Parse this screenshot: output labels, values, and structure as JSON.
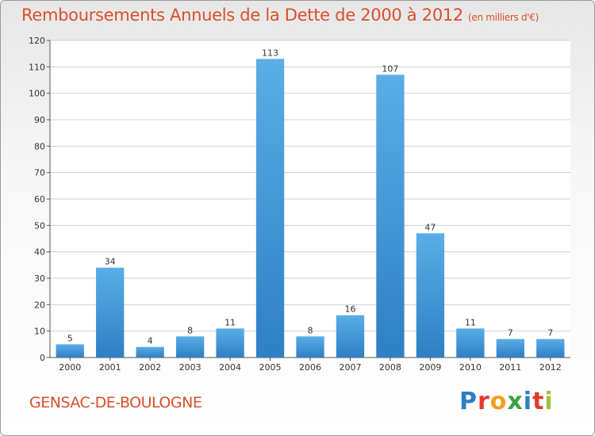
{
  "header": {
    "title": "Remboursements Annuels de la Dette de 2000 à 2012",
    "unit": "(en milliers d'€)"
  },
  "footer": {
    "commune": "GENSAC-DE-BOULOGNE",
    "logo": "Proxiti",
    "logo_letters": [
      "P",
      "r",
      "o",
      "x",
      "i",
      "t",
      "i"
    ]
  },
  "colors": {
    "title": "#d94f2a",
    "bar_top": "#5aaee6",
    "bar_bottom": "#2f7fc4",
    "grid": "#d0d0d0"
  },
  "chart_data": {
    "type": "bar",
    "title": "Remboursements Annuels de la Dette de 2000 à 2012",
    "subtitle": "(en milliers d'€)",
    "xlabel": "",
    "ylabel": "",
    "categories": [
      "2000",
      "2001",
      "2002",
      "2003",
      "2004",
      "2005",
      "2006",
      "2007",
      "2008",
      "2009",
      "2010",
      "2011",
      "2012"
    ],
    "values": [
      5,
      34,
      4,
      8,
      11,
      113,
      8,
      16,
      107,
      47,
      11,
      7,
      7
    ],
    "ylim": [
      0,
      120
    ],
    "yticks": [
      0,
      10,
      20,
      30,
      40,
      50,
      60,
      70,
      80,
      90,
      100,
      110,
      120
    ],
    "grid": true
  }
}
